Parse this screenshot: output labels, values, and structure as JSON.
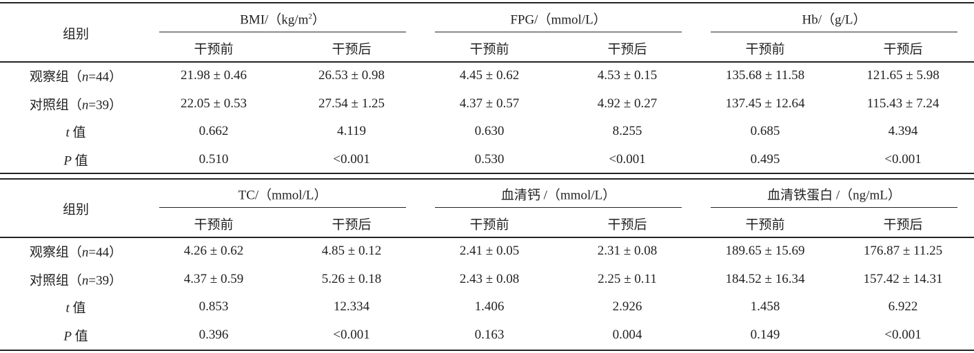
{
  "tables": [
    {
      "group_header": "组别",
      "measures": [
        {
          "name": [
            "BMI/（kg/m",
            "2",
            "）"
          ],
          "sub": [
            "干预前",
            "干预后"
          ]
        },
        {
          "name": [
            "FPG/（mmol/L）"
          ],
          "sub": [
            "干预前",
            "干预后"
          ]
        },
        {
          "name": [
            "Hb/（g/L）"
          ],
          "sub": [
            "干预前",
            "干预后"
          ]
        }
      ],
      "rows": [
        {
          "label": [
            "观察组（",
            "n",
            "=44）"
          ],
          "cells": [
            "21.98 ± 0.46",
            "26.53 ± 0.98",
            "4.45 ± 0.62",
            "4.53 ± 0.15",
            "135.68 ± 11.58",
            "121.65 ± 5.98"
          ]
        },
        {
          "label": [
            "对照组（",
            "n",
            "=39）"
          ],
          "cells": [
            "22.05 ± 0.53",
            "27.54 ± 1.25",
            "4.37 ± 0.57",
            "4.92 ± 0.27",
            "137.45 ± 12.64",
            "115.43 ± 7.24"
          ]
        },
        {
          "label": [
            "t",
            " 值"
          ],
          "cells": [
            "0.662",
            "4.119",
            "0.630",
            "8.255",
            "0.685",
            "4.394"
          ]
        },
        {
          "label": [
            "P",
            " 值"
          ],
          "cells": [
            "0.510",
            "<0.001",
            "0.530",
            "<0.001",
            "0.495",
            "<0.001"
          ]
        }
      ]
    },
    {
      "group_header": "组别",
      "measures": [
        {
          "name": [
            "TC/（mmol/L）"
          ],
          "sub": [
            "干预前",
            "干预后"
          ]
        },
        {
          "name": [
            "血清钙 /（mmol/L）"
          ],
          "sub": [
            "干预前",
            "干预后"
          ]
        },
        {
          "name": [
            "血清铁蛋白 /（ng/mL）"
          ],
          "sub": [
            "干预前",
            "干预后"
          ]
        }
      ],
      "rows": [
        {
          "label": [
            "观察组（",
            "n",
            "=44）"
          ],
          "cells": [
            "4.26 ± 0.62",
            "4.85 ± 0.12",
            "2.41 ± 0.05",
            "2.31 ± 0.08",
            "189.65 ± 15.69",
            "176.87 ± 11.25"
          ]
        },
        {
          "label": [
            "对照组（",
            "n",
            "=39）"
          ],
          "cells": [
            "4.37 ± 0.59",
            "5.26 ± 0.18",
            "2.43 ± 0.08",
            "2.25 ± 0.11",
            "184.52 ± 16.34",
            "157.42 ± 14.31"
          ]
        },
        {
          "label": [
            "t",
            " 值"
          ],
          "cells": [
            "0.853",
            "12.334",
            "1.406",
            "2.926",
            "1.458",
            "6.922"
          ]
        },
        {
          "label": [
            "P",
            " 值"
          ],
          "cells": [
            "0.396",
            "<0.001",
            "0.163",
            "0.004",
            "0.149",
            "<0.001"
          ]
        }
      ]
    }
  ]
}
